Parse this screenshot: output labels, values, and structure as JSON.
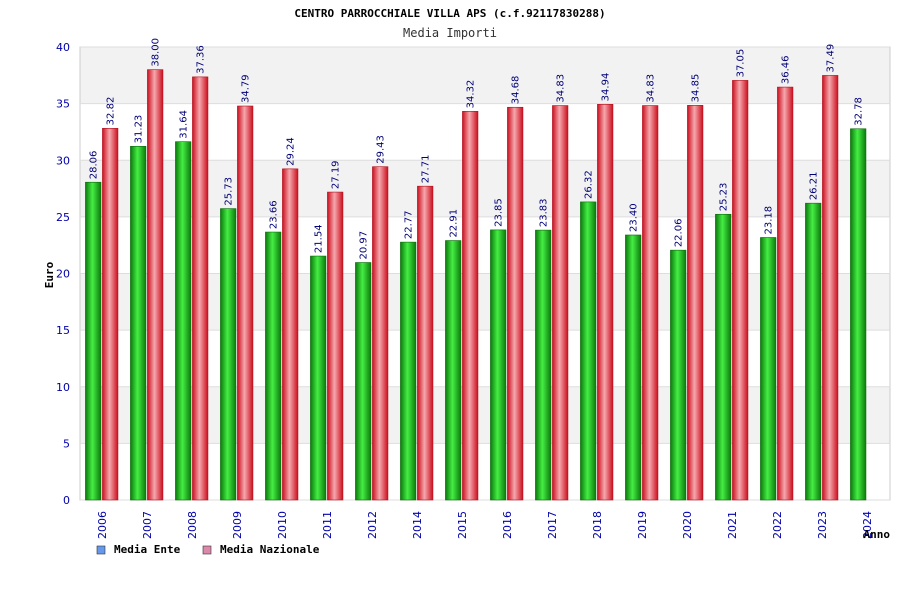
{
  "chart_data": {
    "type": "bar",
    "title": "CENTRO PARROCCHIALE VILLA APS (c.f.92117830288)",
    "subtitle": "Media Importi",
    "xlabel": "Anno",
    "ylabel": "Euro",
    "ylim": [
      0,
      40
    ],
    "yticks": [
      "0",
      "5",
      "10",
      "15",
      "20",
      "25",
      "30",
      "35",
      "40"
    ],
    "categories": [
      "2006",
      "2007",
      "2008",
      "2009",
      "2010",
      "2011",
      "2012",
      "2014",
      "2015",
      "2016",
      "2017",
      "2018",
      "2019",
      "2020",
      "2021",
      "2022",
      "2023",
      "2024"
    ],
    "series": [
      {
        "name": "Media Ente",
        "color": "#22aa22",
        "values": [
          28.06,
          31.23,
          31.64,
          25.73,
          23.66,
          21.54,
          20.97,
          22.77,
          22.91,
          23.85,
          23.83,
          26.32,
          23.4,
          22.06,
          25.23,
          23.18,
          26.21,
          32.78
        ],
        "labels": [
          "28.06",
          "31.23",
          "31.64",
          "25.73",
          "23.66",
          "21.54",
          "20.97",
          "22.77",
          "22.91",
          "23.85",
          "23.83",
          "26.32",
          "23.40",
          "22.06",
          "25.23",
          "23.18",
          "26.21",
          "32.78"
        ]
      },
      {
        "name": "Media Nazionale",
        "color": "#ee2233",
        "values": [
          32.82,
          38.0,
          37.36,
          34.79,
          29.24,
          27.19,
          29.43,
          27.71,
          34.32,
          34.68,
          34.83,
          34.94,
          34.83,
          34.85,
          37.05,
          36.46,
          37.49,
          null
        ],
        "labels": [
          "32.82",
          "38.00",
          "37.36",
          "34.79",
          "29.24",
          "27.19",
          "29.43",
          "27.71",
          "34.32",
          "34.68",
          "34.83",
          "34.94",
          "34.83",
          "34.85",
          "37.05",
          "36.46",
          "37.49",
          ""
        ]
      }
    ],
    "legend_position": "bottom-left",
    "legend_swatch_colors": [
      "#6699ee",
      "#dd88aa"
    ],
    "grid": true,
    "background_bands": [
      "#f2f2f2",
      "#ffffff"
    ]
  }
}
